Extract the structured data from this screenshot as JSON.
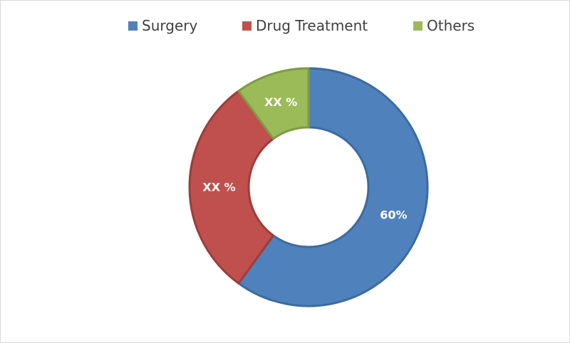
{
  "chart_data": {
    "type": "pie",
    "variant": "donut",
    "title": "",
    "legend_position": "top",
    "slices": [
      {
        "name": "Surgery",
        "value": 60,
        "label": "60%",
        "color": "#4f81bd",
        "stroke": "#3d6ba0"
      },
      {
        "name": "Drug Treatment",
        "value": 30,
        "label": "XX %",
        "color": "#c0504d",
        "stroke": "#9c3d3a"
      },
      {
        "name": "Others",
        "value": 10,
        "label": "XX %",
        "color": "#9bbb59",
        "stroke": "#7d9b43"
      }
    ]
  }
}
